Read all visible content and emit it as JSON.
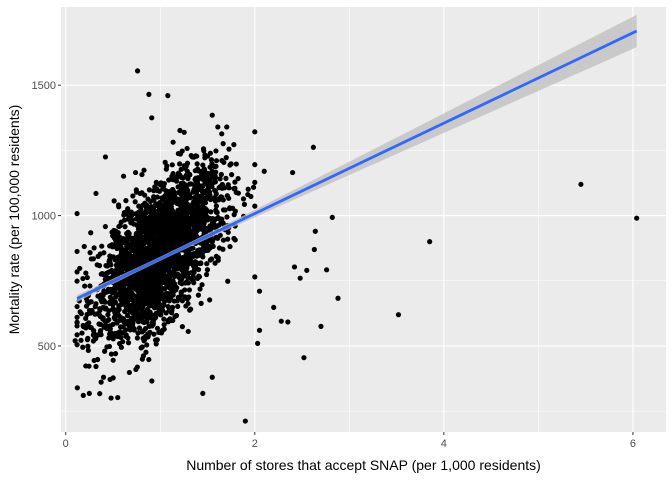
{
  "chart_data": {
    "type": "scatter",
    "xlabel": "Number of stores that accept SNAP (per 1,000 residents)",
    "ylabel": "Mortality rate (per 100,000 residents)",
    "xlim": [
      -0.05,
      6.35
    ],
    "ylim": [
      170,
      1800
    ],
    "x_ticks": [
      0,
      2,
      4,
      6
    ],
    "x_tick_labels": [
      "0",
      "2",
      "4",
      "6"
    ],
    "y_ticks": [
      500,
      1000,
      1500
    ],
    "y_tick_labels": [
      "500",
      "1000",
      "1500"
    ],
    "grid": true,
    "legend": "none",
    "colors": {
      "panel_background": "#ebebeb",
      "grid": "#ffffff",
      "points": "#000000",
      "fit_line": "#3366ff",
      "confidence_band": "#bdbdbd"
    },
    "cluster": {
      "description_note": "",
      "count": 2600,
      "x_mean": 1.0,
      "y_mean": 860
    },
    "outliers": [
      {
        "x": 0.76,
        "y": 1555
      },
      {
        "x": 0.88,
        "y": 1465
      },
      {
        "x": 1.08,
        "y": 1460
      },
      {
        "x": 0.91,
        "y": 1375
      },
      {
        "x": 1.55,
        "y": 1385
      },
      {
        "x": 0.42,
        "y": 1225
      },
      {
        "x": 0.32,
        "y": 1085
      },
      {
        "x": 2.1,
        "y": 1170
      },
      {
        "x": 2.4,
        "y": 1165
      },
      {
        "x": 2.62,
        "y": 1262
      },
      {
        "x": 2.82,
        "y": 993
      },
      {
        "x": 2.64,
        "y": 940
      },
      {
        "x": 2.63,
        "y": 870
      },
      {
        "x": 2.42,
        "y": 803
      },
      {
        "x": 2.55,
        "y": 790
      },
      {
        "x": 2.76,
        "y": 792
      },
      {
        "x": 2.48,
        "y": 760
      },
      {
        "x": 2.88,
        "y": 683
      },
      {
        "x": 2.2,
        "y": 648
      },
      {
        "x": 2.05,
        "y": 710
      },
      {
        "x": 2.0,
        "y": 765
      },
      {
        "x": 2.28,
        "y": 595
      },
      {
        "x": 2.35,
        "y": 592
      },
      {
        "x": 2.7,
        "y": 575
      },
      {
        "x": 2.05,
        "y": 560
      },
      {
        "x": 2.03,
        "y": 510
      },
      {
        "x": 2.52,
        "y": 455
      },
      {
        "x": 3.52,
        "y": 620
      },
      {
        "x": 3.85,
        "y": 900
      },
      {
        "x": 5.45,
        "y": 1120
      },
      {
        "x": 6.04,
        "y": 990
      },
      {
        "x": 1.9,
        "y": 212
      },
      {
        "x": 1.45,
        "y": 318
      },
      {
        "x": 0.55,
        "y": 302
      },
      {
        "x": 0.25,
        "y": 318
      },
      {
        "x": 0.1,
        "y": 520
      },
      {
        "x": 0.18,
        "y": 495
      },
      {
        "x": 0.4,
        "y": 380
      },
      {
        "x": 1.55,
        "y": 380
      }
    ],
    "fit": {
      "method": "lm",
      "x_range": [
        0.12,
        6.04
      ],
      "y_at_start": 682,
      "y_at_end": 1708,
      "se_at_start": 20,
      "se_at_center": 8,
      "se_at_end": 62
    }
  }
}
